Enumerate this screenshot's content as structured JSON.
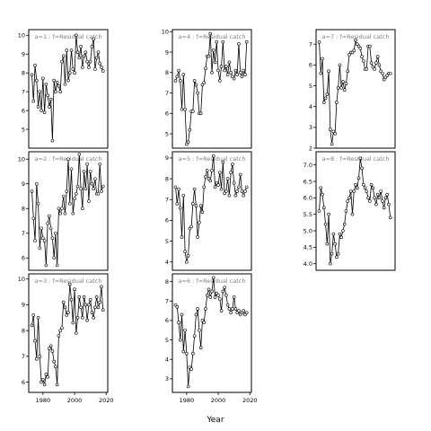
{
  "colors": {
    "line": "#000000",
    "point_fill": "#ffffff",
    "title_text": "#7f7f7f",
    "background": "#ffffff"
  },
  "chart_data": {
    "type": "line",
    "layout": "3x3 small multiples, columns filled top-to-bottom",
    "xlabel": "Year",
    "x_ticks": [
      1980,
      2000,
      2020
    ],
    "x_tick_rows": "bottom row only",
    "x": [
      1973,
      1974,
      1975,
      1976,
      1977,
      1978,
      1979,
      1980,
      1981,
      1982,
      1983,
      1984,
      1985,
      1986,
      1987,
      1988,
      1989,
      1990,
      1991,
      1992,
      1993,
      1994,
      1995,
      1996,
      1997,
      1998,
      1999,
      2000,
      2001,
      2002,
      2003,
      2004,
      2005,
      2006,
      2007,
      2008,
      2009,
      2010,
      2011,
      2012,
      2013,
      2014,
      2015,
      2016,
      2017,
      2018
    ],
    "panels": [
      {
        "title": "a=1 : f=Residual catch",
        "ylim": [
          4,
          10.3
        ],
        "yticks": [
          5,
          6,
          7,
          8,
          9,
          10
        ],
        "values": [
          7.9,
          6.5,
          8.4,
          7.6,
          6.2,
          7.0,
          6.0,
          7.7,
          5.9,
          7.4,
          6.8,
          6.2,
          6.6,
          4.4,
          7.6,
          7.0,
          7.5,
          7.3,
          7.0,
          8.6,
          8.9,
          7.4,
          9.2,
          7.6,
          8.0,
          9.2,
          8.2,
          8.0,
          10.0,
          9.1,
          8.8,
          9.4,
          8.3,
          8.9,
          9.1,
          8.6,
          8.3,
          8.6,
          9.4,
          9.8,
          8.2,
          8.8,
          9.1,
          8.5,
          8.3,
          8.1
        ]
      },
      {
        "title": "a=2 : f=Residual catch",
        "ylim": [
          5.5,
          10.3
        ],
        "yticks": [
          6,
          7,
          8,
          9,
          10
        ],
        "values": [
          8.7,
          7.6,
          6.7,
          9.0,
          8.2,
          6.4,
          7.2,
          6.8,
          6.7,
          5.7,
          7.4,
          7.7,
          7.2,
          6.8,
          6.0,
          7.0,
          5.7,
          8.0,
          7.8,
          8.0,
          8.5,
          7.8,
          8.7,
          10.0,
          8.2,
          9.6,
          7.8,
          8.4,
          8.6,
          8.9,
          10.2,
          8.8,
          8.0,
          9.5,
          8.8,
          9.8,
          8.3,
          9.5,
          9.0,
          8.8,
          9.2,
          8.6,
          8.6,
          9.8,
          8.7,
          8.9
        ]
      },
      {
        "title": "a=3 : f=Residual catch",
        "ylim": [
          5.6,
          10.2
        ],
        "yticks": [
          6,
          7,
          8,
          9,
          10
        ],
        "values": [
          8.2,
          8.6,
          7.6,
          6.9,
          8.5,
          7.0,
          6.0,
          6.1,
          5.9,
          6.3,
          6.2,
          7.3,
          7.4,
          7.2,
          6.8,
          6.6,
          5.9,
          7.8,
          8.0,
          8.1,
          9.1,
          8.9,
          8.6,
          8.7,
          9.8,
          9.2,
          8.3,
          9.6,
          7.9,
          8.5,
          9.3,
          8.9,
          8.5,
          9.3,
          9.0,
          8.4,
          9.0,
          9.2,
          8.7,
          8.5,
          8.9,
          9.3,
          8.9,
          9.1,
          9.7,
          8.8
        ]
      },
      {
        "title": "a=4 : f=Residual catch",
        "ylim": [
          4.3,
          10.1
        ],
        "yticks": [
          5,
          6,
          7,
          8,
          9,
          10
        ],
        "values": [
          7.6,
          7.8,
          8.1,
          7.6,
          6.2,
          7.9,
          6.2,
          4.5,
          4.6,
          5.2,
          6.1,
          6.1,
          7.6,
          7.4,
          7.0,
          6.0,
          6.0,
          7.4,
          7.5,
          8.2,
          8.8,
          8.8,
          9.9,
          8.0,
          9.1,
          8.5,
          9.5,
          8.1,
          7.6,
          8.3,
          9.5,
          8.1,
          8.3,
          7.9,
          8.5,
          8.0,
          7.8,
          7.7,
          8.1,
          7.9,
          9.4,
          8.0,
          7.8,
          8.1,
          7.9,
          9.5
        ]
      },
      {
        "title": "a=5 : f=Residual catch",
        "ylim": [
          3.6,
          9.3
        ],
        "yticks": [
          4,
          5,
          6,
          7,
          8,
          9
        ],
        "values": [
          7.6,
          6.8,
          7.5,
          6.6,
          5.2,
          7.2,
          4.5,
          4.0,
          4.3,
          5.6,
          5.7,
          6.8,
          7.5,
          6.7,
          5.2,
          5.9,
          6.7,
          6.4,
          7.6,
          8.1,
          8.4,
          8.0,
          7.9,
          8.4,
          9.1,
          7.6,
          7.8,
          7.7,
          8.3,
          7.5,
          8.8,
          7.3,
          7.4,
          8.0,
          7.2,
          8.3,
          8.7,
          7.8,
          7.2,
          7.4,
          7.6,
          8.2,
          7.4,
          7.2,
          7.4,
          7.6
        ]
      },
      {
        "title": "a=6 : f=Residual catch",
        "ylim": [
          2.3,
          8.4
        ],
        "yticks": [
          3,
          4,
          5,
          6,
          7,
          8
        ],
        "values": [
          6.8,
          6.7,
          5.9,
          5.0,
          6.3,
          4.4,
          5.5,
          4.3,
          2.6,
          3.6,
          3.5,
          4.3,
          5.2,
          6.3,
          6.6,
          5.5,
          4.6,
          6.0,
          5.9,
          6.6,
          7.3,
          7.6,
          7.2,
          7.5,
          8.2,
          7.2,
          7.4,
          7.3,
          7.1,
          6.5,
          7.5,
          7.7,
          7.3,
          6.8,
          6.6,
          6.4,
          6.6,
          7.2,
          6.6,
          6.4,
          6.5,
          6.3,
          6.4,
          6.5,
          6.3,
          6.4
        ]
      },
      {
        "title": "a=7 : f=Residual catch",
        "ylim": [
          2,
          7.7
        ],
        "yticks": [
          2,
          3,
          4,
          5,
          6,
          7
        ],
        "values": [
          7.1,
          5.6,
          6.3,
          4.2,
          4.4,
          4.6,
          5.7,
          2.9,
          2.2,
          2.8,
          2.7,
          4.2,
          4.9,
          6.0,
          4.9,
          5.2,
          4.8,
          5.1,
          5.7,
          6.5,
          6.6,
          6.6,
          6.7,
          7.2,
          7.0,
          6.9,
          6.8,
          6.4,
          6.2,
          5.8,
          5.8,
          6.9,
          6.9,
          6.1,
          5.9,
          5.8,
          6.1,
          6.4,
          6.0,
          5.7,
          5.6,
          5.3,
          5.4,
          5.5,
          5.6,
          5.6
        ]
      },
      {
        "title": "a=8 : f=Residual catch",
        "ylim": [
          3.8,
          7.4
        ],
        "yticks": [
          4.0,
          4.5,
          5.0,
          5.5,
          6.0,
          6.5,
          7.0
        ],
        "values": [
          5.6,
          6.3,
          6.1,
          5.7,
          5.2,
          4.6,
          5.5,
          4.0,
          4.3,
          4.9,
          4.6,
          4.2,
          4.3,
          4.9,
          4.8,
          5.0,
          5.2,
          5.6,
          5.9,
          6.0,
          6.2,
          5.5,
          6.2,
          6.4,
          6.3,
          6.6,
          7.2,
          6.9,
          6.4,
          6.3,
          6.2,
          6.0,
          5.9,
          6.4,
          6.3,
          6.0,
          5.8,
          6.1,
          6.0,
          6.2,
          5.9,
          5.7,
          6.0,
          6.1,
          5.8,
          5.4
        ]
      }
    ]
  }
}
